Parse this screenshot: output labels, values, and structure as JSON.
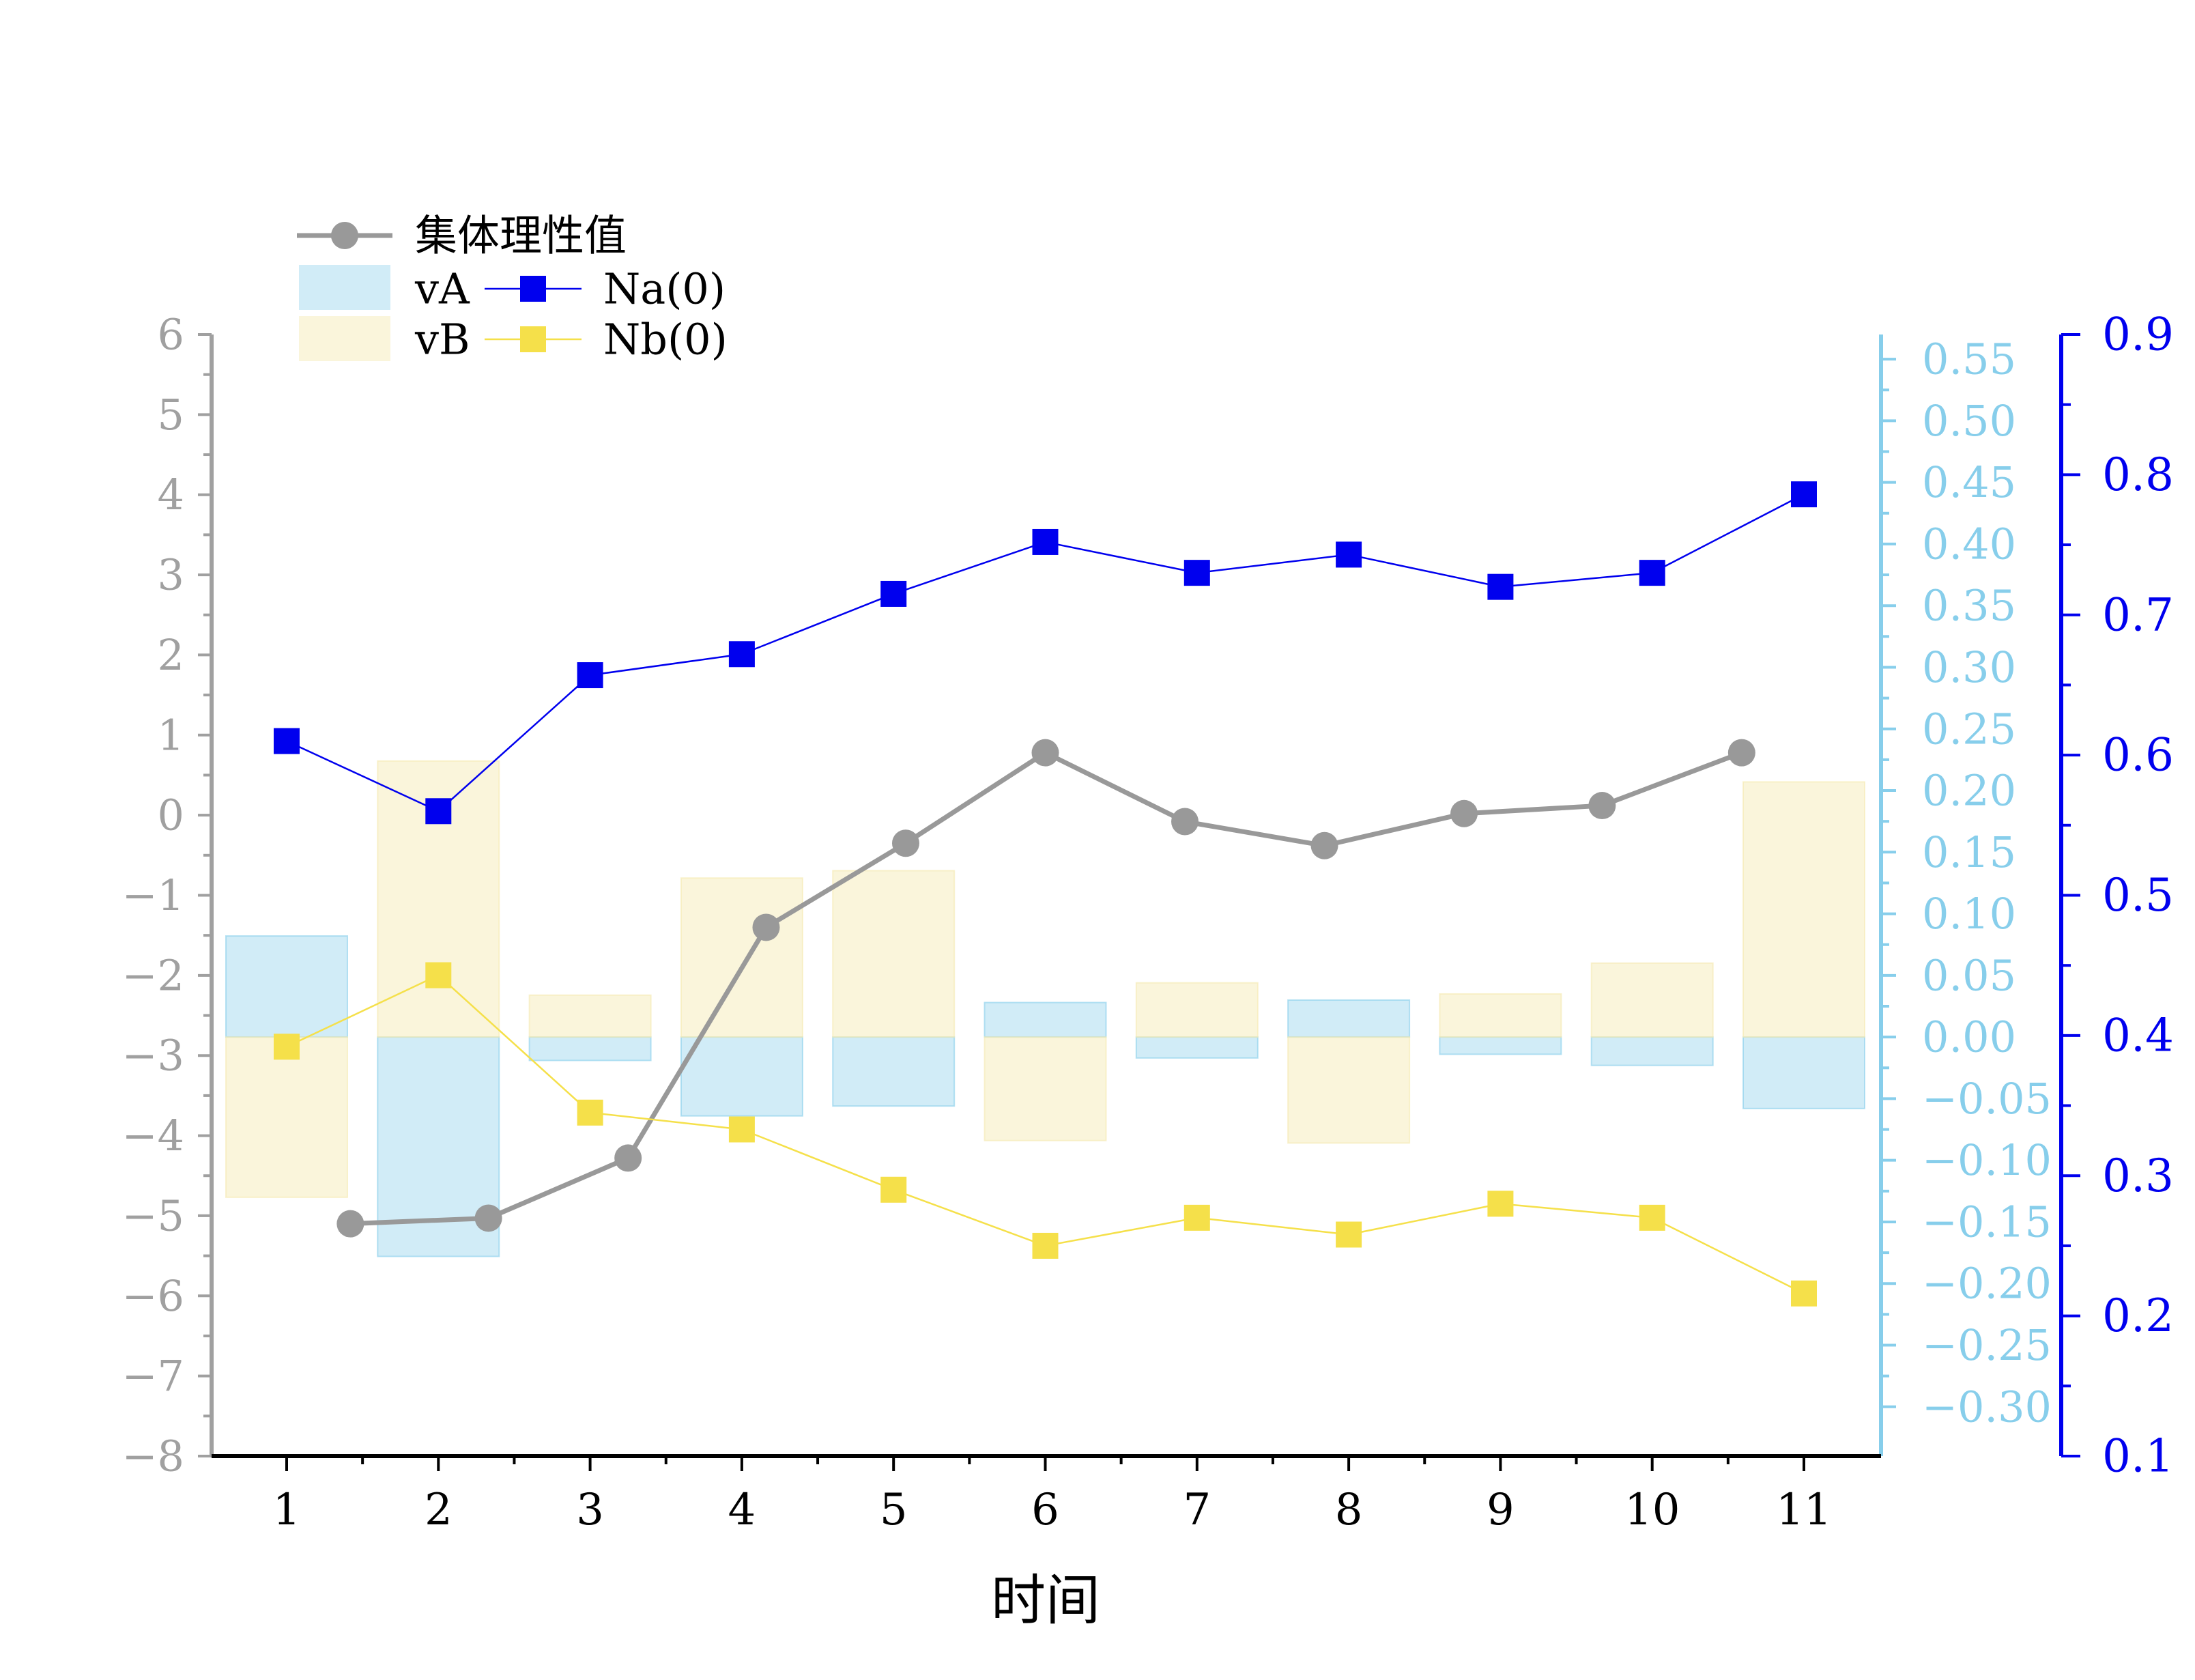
{
  "chart_data": {
    "type": "bar",
    "xlabel": "时间",
    "categories": [
      "1",
      "2",
      "3",
      "4",
      "5",
      "6",
      "7",
      "8",
      "9",
      "10",
      "11"
    ],
    "x_axis": {
      "ticks": [
        "1",
        "2",
        "3",
        "4",
        "5",
        "6",
        "7",
        "8",
        "9",
        "10",
        "11"
      ]
    },
    "left_axis": {
      "ylim": [
        -8,
        6
      ],
      "ticks": [
        "−8",
        "−7",
        "−6",
        "−5",
        "−4",
        "−3",
        "−2",
        "−1",
        "0",
        "1",
        "2",
        "3",
        "4",
        "5",
        "6"
      ],
      "color": "#a0a0a0"
    },
    "vel_axis": {
      "ylim": [
        -0.34,
        0.57
      ],
      "ticks": [
        "−0.30",
        "−0.25",
        "−0.20",
        "−0.15",
        "−0.10",
        "−0.05",
        "0.00",
        "0.05",
        "0.10",
        "0.15",
        "0.20",
        "0.25",
        "0.30",
        "0.35",
        "0.40",
        "0.45",
        "0.50",
        "0.55"
      ],
      "color": "#87ceeb"
    },
    "n_axis": {
      "ylim": [
        0.1,
        0.9
      ],
      "ticks": [
        "0.1",
        "0.2",
        "0.3",
        "0.4",
        "0.5",
        "0.6",
        "0.7",
        "0.8",
        "0.9"
      ],
      "color": "#0000ee"
    },
    "series": [
      {
        "name": "集体理性值",
        "kind": "line-circle",
        "axis": "left",
        "color": "#999999",
        "x": [
          1.42,
          2.33,
          3.25,
          4.16,
          5.08,
          6.0,
          6.92,
          7.84,
          8.76,
          9.67,
          10.59
        ],
        "values": [
          -5.1,
          -5.03,
          -4.28,
          -1.4,
          -0.35,
          0.78,
          -0.08,
          -0.38,
          0.02,
          0.12,
          0.78
        ]
      },
      {
        "name": "vA",
        "kind": "bar",
        "axis": "vel",
        "color": "#87ceeb",
        "values": [
          0.082,
          -0.178,
          -0.019,
          -0.064,
          -0.056,
          0.028,
          -0.017,
          0.03,
          -0.014,
          -0.023,
          -0.058
        ]
      },
      {
        "name": "vB",
        "kind": "bar",
        "axis": "vel",
        "color": "#f5e9b0",
        "values": [
          -0.13,
          0.224,
          0.034,
          0.129,
          0.135,
          -0.084,
          0.044,
          -0.086,
          0.035,
          0.06,
          0.207
        ]
      },
      {
        "name": "Na(0)",
        "kind": "line-square",
        "axis": "n",
        "color": "#0000ee",
        "values": [
          0.61,
          0.56,
          0.657,
          0.672,
          0.715,
          0.752,
          0.73,
          0.743,
          0.72,
          0.73,
          0.786
        ]
      },
      {
        "name": "Nb(0)",
        "kind": "line-square",
        "axis": "n",
        "color": "#f5e04a",
        "values": [
          0.392,
          0.443,
          0.345,
          0.333,
          0.29,
          0.25,
          0.27,
          0.258,
          0.28,
          0.27,
          0.216
        ]
      }
    ],
    "legend": {
      "position": "top-left",
      "entries": [
        "集体理性值",
        "vA",
        "vB",
        "Na(0)",
        "Nb(0)"
      ]
    },
    "grid": false
  }
}
